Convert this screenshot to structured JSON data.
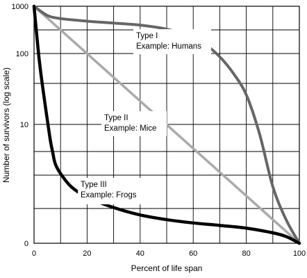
{
  "chart_data": {
    "type": "line",
    "title": "",
    "xlabel": "Percent of life span",
    "ylabel": "Number of survivors (log scale)",
    "xlim": [
      0,
      100
    ],
    "ylim": [
      0,
      1000
    ],
    "y_scale": "log",
    "grid": true,
    "x_ticks": [
      "0",
      "20",
      "40",
      "60",
      "80",
      "100"
    ],
    "y_ticks": [
      "1000",
      "100",
      "10",
      "0"
    ],
    "colors": {
      "type_i": "#666666",
      "type_ii": "#aaaaaa",
      "type_iii": "#000000",
      "grid": "#000000"
    },
    "series": [
      {
        "key": "type_i",
        "x": [
          0,
          5,
          10,
          20,
          30,
          40,
          50,
          60,
          65,
          70,
          75,
          80,
          85,
          90,
          95,
          100
        ],
        "y": [
          1000,
          700,
          620,
          560,
          520,
          480,
          410,
          300,
          220,
          140,
          75,
          32,
          7,
          0.9,
          0.25,
          0.1
        ]
      },
      {
        "key": "type_ii",
        "x": [
          0,
          100
        ],
        "y": [
          1000,
          0.1
        ]
      },
      {
        "key": "type_iii",
        "x": [
          0,
          2,
          4,
          6,
          7,
          8,
          10,
          14,
          20,
          30,
          40,
          50,
          60,
          70,
          80,
          90,
          95,
          100
        ],
        "y": [
          1000,
          120,
          25,
          6,
          3.5,
          2.2,
          1.5,
          0.9,
          0.6,
          0.4,
          0.3,
          0.25,
          0.22,
          0.2,
          0.18,
          0.15,
          0.13,
          0.1
        ]
      }
    ],
    "annotations": [
      {
        "series": "type_i",
        "lines": [
          "Type I",
          "Example: Humans"
        ]
      },
      {
        "series": "type_ii",
        "lines": [
          "Type II",
          "Example: Mice"
        ]
      },
      {
        "series": "type_iii",
        "lines": [
          "Type III",
          "Example: Frogs"
        ]
      }
    ]
  }
}
